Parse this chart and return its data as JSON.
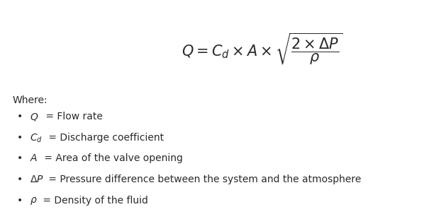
{
  "bg_color": "#ffffff",
  "where_label": "Where:",
  "bullets": [
    {
      "symbol": "$Q$",
      "description": " = Flow rate"
    },
    {
      "symbol": "$C_d$",
      "description": " = Discharge coefficient"
    },
    {
      "symbol": "$A$",
      "description": " = Area of the valve opening"
    },
    {
      "symbol": "$\\Delta P$",
      "description": " = Pressure difference between the system and the atmosphere"
    },
    {
      "symbol": "$\\rho$",
      "description": " = Density of the fluid"
    }
  ],
  "formula_fontsize": 15,
  "where_fontsize": 10,
  "bullet_fontsize": 10,
  "text_color": "#2a2a2a",
  "figsize": [
    5.98,
    3.1
  ],
  "dpi": 100
}
